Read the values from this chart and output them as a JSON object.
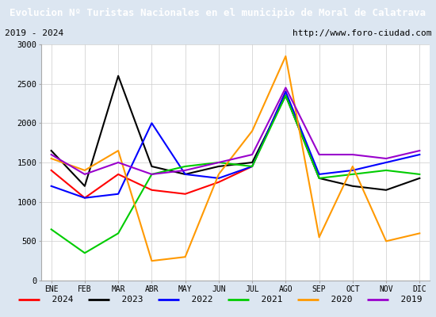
{
  "title": "Evolucion Nº Turistas Nacionales en el municipio de Moral de Calatrava",
  "subtitle_left": "2019 - 2024",
  "subtitle_right": "http://www.foro-ciudad.com",
  "xlabel_months": [
    "ENE",
    "FEB",
    "MAR",
    "ABR",
    "MAY",
    "JUN",
    "JUL",
    "AGO",
    "SEP",
    "OCT",
    "NOV",
    "DIC"
  ],
  "ylim": [
    0,
    3000
  ],
  "yticks": [
    0,
    500,
    1000,
    1500,
    2000,
    2500,
    3000
  ],
  "series": {
    "2024": {
      "color": "#ff0000",
      "values": [
        1400,
        1050,
        1350,
        1150,
        1100,
        1250,
        1450,
        2400,
        null,
        null,
        null,
        null
      ]
    },
    "2023": {
      "color": "#000000",
      "values": [
        1650,
        1200,
        2600,
        1450,
        1350,
        1450,
        1500,
        2350,
        1300,
        1200,
        1150,
        1300
      ]
    },
    "2022": {
      "color": "#0000ff",
      "values": [
        1200,
        1050,
        1100,
        2000,
        1350,
        1300,
        1450,
        2400,
        1350,
        1400,
        1500,
        1600
      ]
    },
    "2021": {
      "color": "#00cc00",
      "values": [
        650,
        350,
        600,
        1350,
        1450,
        1500,
        1450,
        2350,
        1300,
        1350,
        1400,
        1350
      ]
    },
    "2020": {
      "color": "#ff9900",
      "values": [
        1550,
        1400,
        1650,
        250,
        300,
        1350,
        1900,
        2850,
        550,
        1450,
        500,
        600
      ]
    },
    "2019": {
      "color": "#9900cc",
      "values": [
        1600,
        1350,
        1500,
        1350,
        1400,
        1500,
        1600,
        2450,
        1600,
        1600,
        1550,
        1650
      ]
    }
  },
  "title_bg_color": "#5b9bd5",
  "title_text_color": "#ffffff",
  "plot_bg_color": "#ffffff",
  "outer_bg_color": "#dce6f1",
  "grid_color": "#cccccc",
  "legend_order": [
    "2024",
    "2023",
    "2022",
    "2021",
    "2020",
    "2019"
  ]
}
